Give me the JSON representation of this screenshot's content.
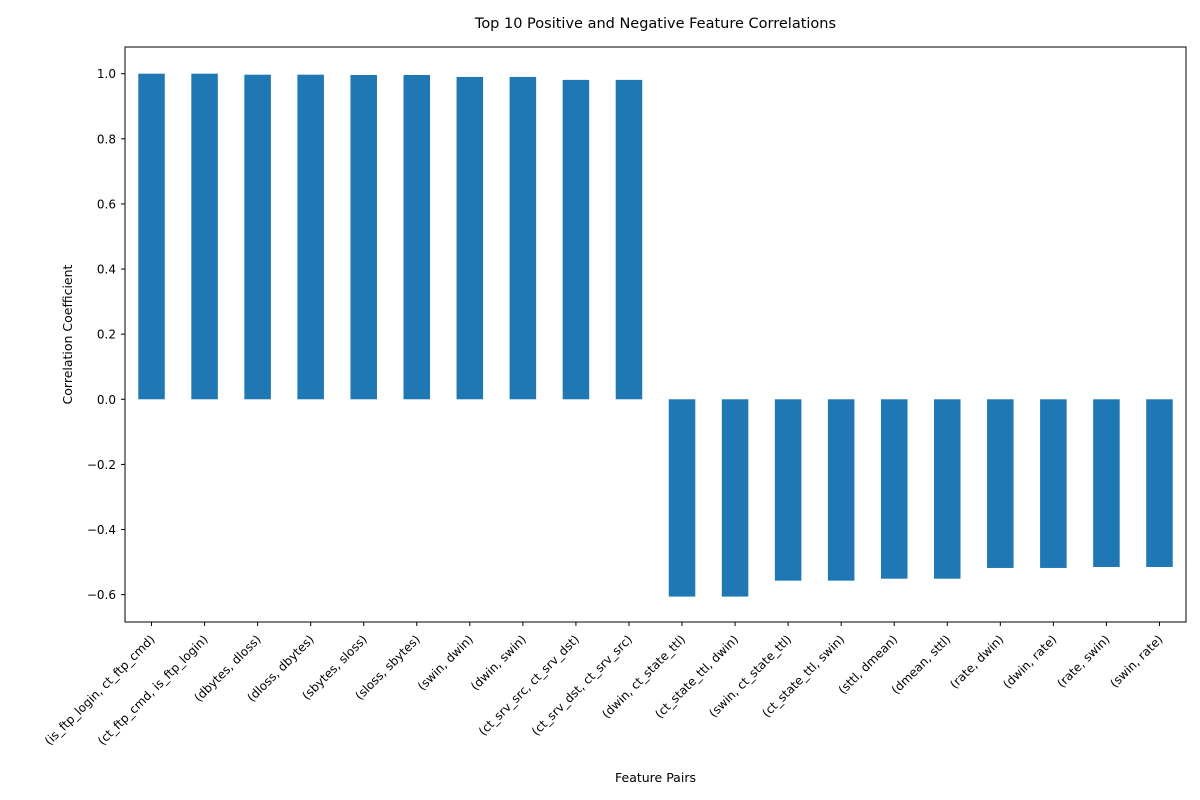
{
  "chart_data": {
    "type": "bar",
    "title": "Top 10 Positive and Negative Feature Correlations",
    "xlabel": "Feature Pairs",
    "ylabel": "Correlation Coefficient",
    "ylim": [
      -0.684,
      1.082
    ],
    "yticks": [
      -0.6,
      -0.4,
      -0.2,
      0.0,
      0.2,
      0.4,
      0.6,
      0.8,
      1.0
    ],
    "ytick_labels": [
      "−0.6",
      "−0.4",
      "−0.2",
      "0.0",
      "0.2",
      "0.4",
      "0.6",
      "0.8",
      "1.0"
    ],
    "grid": false,
    "bar_color": "#1f77b4",
    "categories": [
      "(is_ftp_login, ct_ftp_cmd)",
      "(ct_ftp_cmd, is_ftp_login)",
      "(dbytes, dloss)",
      "(dloss, dbytes)",
      "(sbytes, sloss)",
      "(sloss, sbytes)",
      "(swin, dwin)",
      "(dwin, swin)",
      "(ct_srv_src, ct_srv_dst)",
      "(ct_srv_dst, ct_srv_src)",
      "(dwin, ct_state_ttl)",
      "(ct_state_ttl, dwin)",
      "(swin, ct_state_ttl)",
      "(ct_state_ttl, swin)",
      "(sttl, dmean)",
      "(dmean, sttl)",
      "(rate, dwin)",
      "(dwin, rate)",
      "(rate, swin)",
      "(swin, rate)"
    ],
    "values": [
      1.0,
      1.0,
      0.997,
      0.997,
      0.996,
      0.996,
      0.99,
      0.99,
      0.981,
      0.981,
      -0.606,
      -0.606,
      -0.557,
      -0.557,
      -0.551,
      -0.551,
      -0.518,
      -0.518,
      -0.515,
      -0.515
    ]
  }
}
